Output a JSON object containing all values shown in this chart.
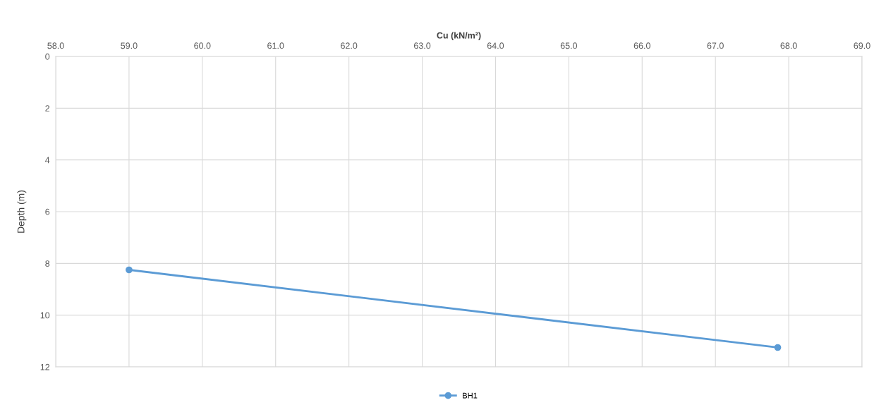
{
  "chart_data": {
    "type": "line",
    "xlabel": "Cu (kN/m²)",
    "ylabel": "Depth (m)",
    "xlim": [
      58,
      69
    ],
    "xticks": [
      {
        "value": 58,
        "label": "58.0"
      },
      {
        "value": 59,
        "label": "59.0"
      },
      {
        "value": 60,
        "label": "60.0"
      },
      {
        "value": 61,
        "label": "61.0"
      },
      {
        "value": 62,
        "label": "62.0"
      },
      {
        "value": 63,
        "label": "63.0"
      },
      {
        "value": 64,
        "label": "64.0"
      },
      {
        "value": 65,
        "label": "65.0"
      },
      {
        "value": 66,
        "label": "66.0"
      },
      {
        "value": 67,
        "label": "67.0"
      },
      {
        "value": 68,
        "label": "68.0"
      },
      {
        "value": 69,
        "label": "69.0"
      }
    ],
    "ylim": [
      12,
      0
    ],
    "yticks": [
      0,
      2,
      4,
      6,
      8,
      10,
      12
    ],
    "series": [
      {
        "name": "BH1",
        "color": "#5b9bd5",
        "x": [
          59.0,
          67.85
        ],
        "values": [
          8.25,
          11.25
        ]
      }
    ],
    "marker": "circle",
    "line_style": "solid",
    "grid": true,
    "legend": "bottom"
  }
}
